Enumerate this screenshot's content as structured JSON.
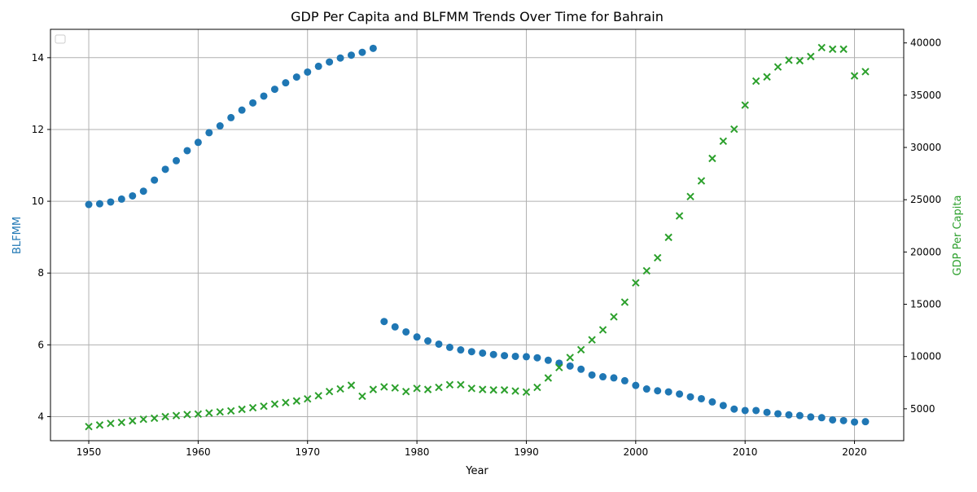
{
  "chart_data": {
    "type": "scatter",
    "title": "GDP Per Capita and BLFMM Trends Over Time for Bahrain",
    "xlabel": "Year",
    "ylabel": "BLFMM",
    "ylabel_right": "GDP Per Capita",
    "xlim": [
      1946.5,
      2024.5
    ],
    "ylim": [
      3.33,
      14.79
    ],
    "ylim_right": [
      1950,
      41300
    ],
    "x_ticks": [
      1950,
      1960,
      1970,
      1980,
      1990,
      2000,
      2010,
      2020
    ],
    "y_ticks": [
      4,
      6,
      8,
      10,
      12,
      14
    ],
    "y_ticks_right": [
      5000,
      10000,
      15000,
      20000,
      25000,
      30000,
      35000,
      40000
    ],
    "grid": true,
    "legend": "top-left (empty)",
    "colors": {
      "blfmm": "#1f77b4",
      "gdp": "#2ca02c",
      "grid": "#b0b0b0"
    },
    "series": [
      {
        "axis": "left",
        "marker": "circle",
        "x": [
          1950,
          1951,
          1952,
          1953,
          1954,
          1955,
          1956,
          1957,
          1958,
          1959,
          1960,
          1961,
          1962,
          1963,
          1964,
          1965,
          1966,
          1967,
          1968,
          1969,
          1970,
          1971,
          1972,
          1973,
          1974,
          1975,
          1976,
          1977,
          1978,
          1979,
          1980,
          1981,
          1982,
          1983,
          1984,
          1985,
          1986,
          1987,
          1988,
          1989,
          1990,
          1991,
          1992,
          1993,
          1994,
          1995,
          1996,
          1997,
          1998,
          1999,
          2000,
          2001,
          2002,
          2003,
          2004,
          2005,
          2006,
          2007,
          2008,
          2009,
          2010,
          2011,
          2012,
          2013,
          2014,
          2015,
          2016,
          2017,
          2018,
          2019,
          2020,
          2021
        ],
        "values": [
          9.91,
          9.93,
          9.98,
          10.06,
          10.15,
          10.28,
          10.59,
          10.89,
          11.13,
          11.41,
          11.64,
          11.91,
          12.1,
          12.33,
          12.54,
          12.74,
          12.93,
          13.12,
          13.3,
          13.46,
          13.6,
          13.76,
          13.88,
          13.99,
          14.07,
          14.15,
          14.26,
          6.65,
          6.5,
          6.36,
          6.22,
          6.11,
          6.02,
          5.93,
          5.86,
          5.81,
          5.77,
          5.73,
          5.7,
          5.68,
          5.67,
          5.64,
          5.57,
          5.49,
          5.41,
          5.32,
          5.16,
          5.11,
          5.08,
          5.0,
          4.87,
          4.77,
          4.72,
          4.69,
          4.63,
          4.55,
          4.5,
          4.41,
          4.31,
          4.21,
          4.17,
          4.17,
          4.12,
          4.08,
          4.05,
          4.03,
          3.99,
          3.97,
          3.91,
          3.89,
          3.85,
          3.86
        ]
      },
      {
        "axis": "right",
        "marker": "x",
        "x": [
          1950,
          1951,
          1952,
          1953,
          1954,
          1955,
          1956,
          1957,
          1958,
          1959,
          1960,
          1961,
          1962,
          1963,
          1964,
          1965,
          1966,
          1967,
          1968,
          1969,
          1970,
          1971,
          1972,
          1973,
          1974,
          1975,
          1976,
          1977,
          1978,
          1979,
          1980,
          1981,
          1982,
          1983,
          1984,
          1985,
          1986,
          1987,
          1988,
          1989,
          1990,
          1991,
          1992,
          1993,
          1994,
          1995,
          1996,
          1997,
          1998,
          1999,
          2000,
          2001,
          2002,
          2003,
          2004,
          2005,
          2006,
          2007,
          2008,
          2009,
          2010,
          2011,
          2012,
          2013,
          2014,
          2015,
          2016,
          2017,
          2018,
          2019,
          2020,
          2021
        ],
        "values": [
          3300,
          3450,
          3600,
          3700,
          3850,
          4000,
          4100,
          4250,
          4350,
          4450,
          4500,
          4600,
          4700,
          4800,
          4950,
          5100,
          5250,
          5450,
          5600,
          5750,
          5950,
          6250,
          6650,
          6900,
          7250,
          6200,
          6850,
          7100,
          7000,
          6650,
          6950,
          6850,
          7050,
          7300,
          7300,
          6950,
          6850,
          6800,
          6800,
          6700,
          6600,
          7050,
          7950,
          8950,
          9900,
          10650,
          11600,
          12550,
          13800,
          15200,
          17050,
          18200,
          19450,
          21400,
          23450,
          25300,
          26800,
          28950,
          30600,
          31750,
          34050,
          36350,
          36750,
          37700,
          38350,
          38300,
          38700,
          39550,
          39400,
          39400,
          36850,
          37250
        ]
      }
    ]
  }
}
